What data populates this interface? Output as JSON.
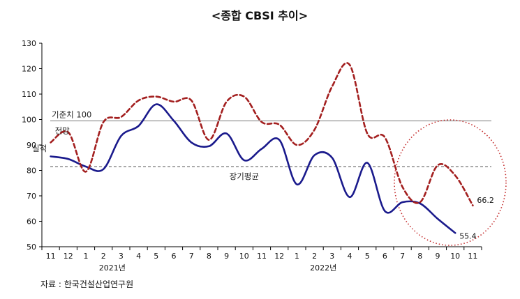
{
  "chart_data": {
    "type": "line",
    "title": "<종합 CBSI 추이>",
    "xlabel": "",
    "ylabel": "",
    "ylim": [
      50,
      130
    ],
    "yticks": [
      50,
      60,
      70,
      80,
      90,
      100,
      110,
      120,
      130
    ],
    "categories": [
      "11",
      "12",
      "1",
      "2",
      "3",
      "4",
      "5",
      "6",
      "7",
      "8",
      "9",
      "10",
      "11",
      "12",
      "1",
      "2",
      "3",
      "4",
      "5",
      "6",
      "7",
      "8",
      "9",
      "10",
      "11"
    ],
    "year_labels": [
      {
        "label": "2021년",
        "at_index": 3.5
      },
      {
        "label": "2022년",
        "at_index": 15.5
      }
    ],
    "series": [
      {
        "name": "실적",
        "style": "solid",
        "color": "#1a1a8c",
        "values": [
          85.5,
          84.5,
          81.5,
          80.5,
          93.5,
          97.5,
          106.0,
          99.5,
          91.0,
          89.5,
          94.5,
          84.0,
          88.5,
          92.0,
          74.5,
          86.0,
          85.0,
          69.5,
          83.0,
          64.0,
          67.5,
          67.0,
          61.0,
          55.4,
          null
        ],
        "end_label": "55.4"
      },
      {
        "name": "전망",
        "style": "dashed",
        "color": "#a31f1f",
        "values": [
          91.0,
          95.0,
          79.5,
          99.0,
          101.0,
          107.5,
          109.0,
          107.0,
          107.5,
          92.0,
          107.0,
          109.0,
          99.0,
          98.0,
          90.0,
          96.0,
          113.0,
          121.5,
          94.5,
          93.0,
          73.5,
          67.5,
          82.0,
          78.0,
          66.2
        ],
        "end_label": "66.2"
      }
    ],
    "reference_lines": [
      {
        "label": "기준치 100",
        "value": 99.5,
        "style": "solid",
        "color": "#777777"
      },
      {
        "label": "장기평균",
        "value": 81.5,
        "style": "dashed",
        "color": "#555555"
      }
    ],
    "series_labels": [
      {
        "text": "전망"
      },
      {
        "text": "실적"
      }
    ],
    "highlight": {
      "shape": "dotted-circle",
      "color": "#c42d2d"
    },
    "grid": false
  },
  "source": "자료 : 한국건설산업연구원"
}
